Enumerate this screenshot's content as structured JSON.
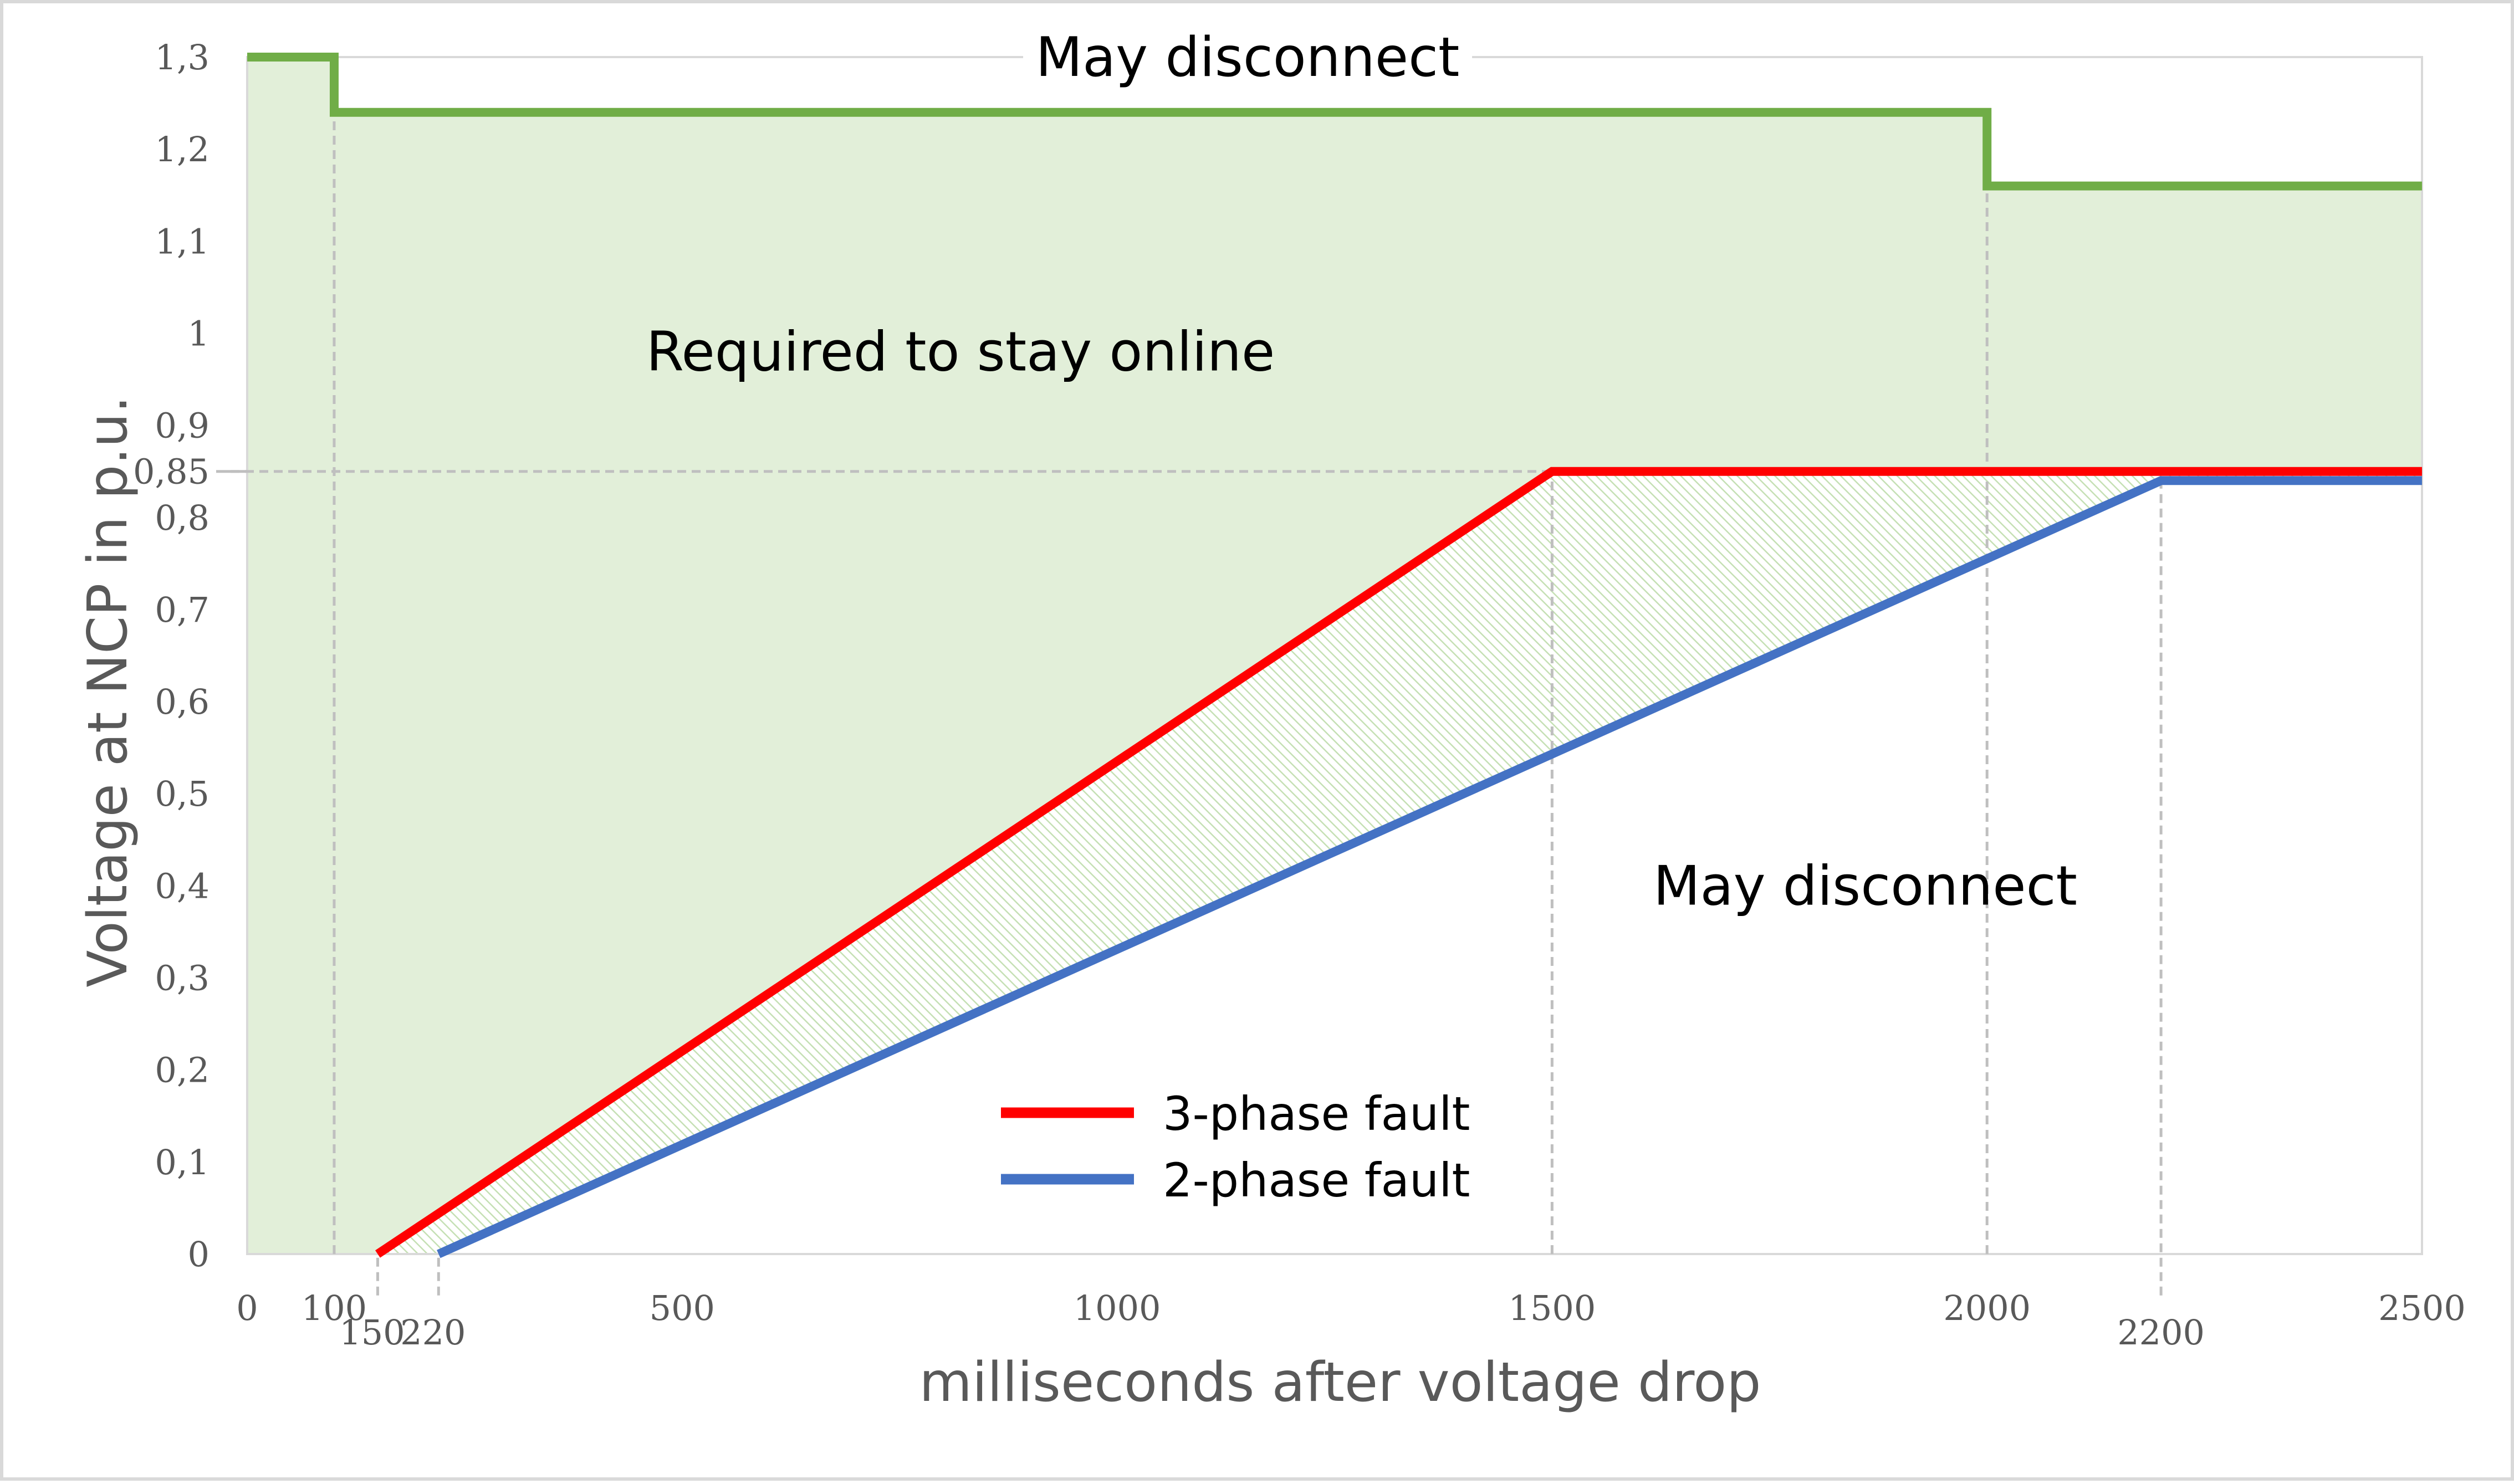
{
  "chart_data": {
    "type": "line",
    "title": "",
    "xlabel": "milliseconds after voltage drop",
    "ylabel": "Voltage at NCP in p.u.",
    "xlim": [
      0,
      2500
    ],
    "ylim": [
      0,
      1.3
    ],
    "grid": false,
    "legend_position": "bottom-center",
    "x_ticks": [
      {
        "value": 0,
        "label": "0",
        "row": 0
      },
      {
        "value": 100,
        "label": "100",
        "row": 0
      },
      {
        "value": 150,
        "label": "150",
        "row": 1
      },
      {
        "value": 220,
        "label": "220",
        "row": 1
      },
      {
        "value": 500,
        "label": "500",
        "row": 0
      },
      {
        "value": 1000,
        "label": "1000",
        "row": 0
      },
      {
        "value": 1500,
        "label": "1500",
        "row": 0
      },
      {
        "value": 2000,
        "label": "2000",
        "row": 0
      },
      {
        "value": 2200,
        "label": "2200",
        "row": 1
      },
      {
        "value": 2500,
        "label": "2500",
        "row": 0
      }
    ],
    "y_ticks": [
      {
        "value": 0,
        "label": "0"
      },
      {
        "value": 0.1,
        "label": "0,1"
      },
      {
        "value": 0.2,
        "label": "0,2"
      },
      {
        "value": 0.3,
        "label": "0,3"
      },
      {
        "value": 0.4,
        "label": "0,4"
      },
      {
        "value": 0.5,
        "label": "0,5"
      },
      {
        "value": 0.6,
        "label": "0,6"
      },
      {
        "value": 0.7,
        "label": "0,7"
      },
      {
        "value": 0.8,
        "label": "0,8"
      },
      {
        "value": 0.85,
        "label": "0,85"
      },
      {
        "value": 0.9,
        "label": "0,9"
      },
      {
        "value": 1.0,
        "label": "1"
      },
      {
        "value": 1.1,
        "label": "1,1"
      },
      {
        "value": 1.2,
        "label": "1,2"
      },
      {
        "value": 1.3,
        "label": "1,3"
      }
    ],
    "series": [
      {
        "name": "",
        "color": "#70ad47",
        "points": [
          [
            0,
            1.3
          ],
          [
            100,
            1.3
          ],
          [
            100,
            1.24
          ],
          [
            2000,
            1.24
          ],
          [
            2000,
            1.16
          ],
          [
            2500,
            1.16
          ]
        ]
      },
      {
        "name": "3-phase fault",
        "color": "#ff0000",
        "points": [
          [
            150,
            0
          ],
          [
            1500,
            0.85
          ],
          [
            2500,
            0.85
          ]
        ]
      },
      {
        "name": "2-phase fault",
        "color": "#4472c4",
        "points": [
          [
            220,
            0
          ],
          [
            2200,
            0.84
          ],
          [
            2500,
            0.84
          ]
        ]
      }
    ],
    "reference_lines": [
      {
        "axis": "x",
        "value": 100,
        "from": 0,
        "to": 1.24
      },
      {
        "axis": "x",
        "value": 150,
        "from": -0.045,
        "to": 0
      },
      {
        "axis": "x",
        "value": 220,
        "from": -0.045,
        "to": 0
      },
      {
        "axis": "x",
        "value": 1500,
        "from": 0,
        "to": 0.85
      },
      {
        "axis": "x",
        "value": 2000,
        "from": 0,
        "to": 1.16
      },
      {
        "axis": "x",
        "value": 2200,
        "from": -0.045,
        "to": 0.84
      },
      {
        "axis": "y",
        "value": 0.85,
        "from": 0,
        "to": 1500
      }
    ],
    "regions": [
      {
        "name": "stay-online",
        "color": "#e2efd9",
        "polygon": [
          [
            0,
            0
          ],
          [
            0,
            1.3
          ],
          [
            100,
            1.3
          ],
          [
            100,
            1.24
          ],
          [
            2000,
            1.24
          ],
          [
            2000,
            1.16
          ],
          [
            2500,
            1.16
          ],
          [
            2500,
            0.85
          ],
          [
            1500,
            0.85
          ],
          [
            150,
            0
          ]
        ]
      },
      {
        "name": "hatched-between-faults",
        "color": "#c5e0b4",
        "polygon": [
          [
            150,
            0
          ],
          [
            1500,
            0.85
          ],
          [
            2500,
            0.85
          ],
          [
            2500,
            0.84
          ],
          [
            2200,
            0.84
          ],
          [
            220,
            0
          ]
        ]
      }
    ],
    "annotations": [
      {
        "text": "May disconnect",
        "x": 1150,
        "y": 1.3
      },
      {
        "text": "Required to stay online",
        "x": 820,
        "y": 0.98
      },
      {
        "text": "May disconnect",
        "x": 1860,
        "y": 0.4
      }
    ],
    "legend": [
      {
        "label": "3-phase fault",
        "color": "#ff0000"
      },
      {
        "label": "2-phase fault",
        "color": "#4472c4"
      }
    ]
  }
}
